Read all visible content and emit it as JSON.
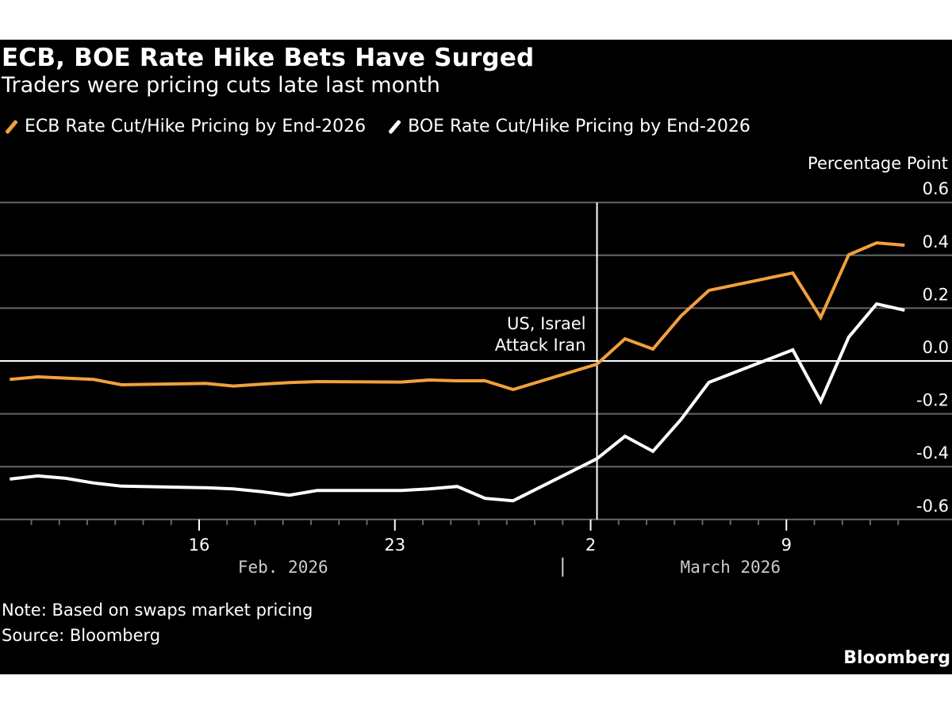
{
  "header": {
    "title": "ECB, BOE Rate Hike Bets Have Surged",
    "subtitle": "Traders were pricing cuts late last month"
  },
  "footer": {
    "note": "Note: Based on swaps market pricing",
    "source": "Source: Bloomberg",
    "brand": "Bloomberg"
  },
  "colors": {
    "background": "#000000",
    "ecb": "#f2a03d",
    "boe": "#ffffff",
    "grid": "#666666",
    "zero_line": "#ffffff",
    "text": "#ffffff",
    "month_label": "#cccccc"
  },
  "chart_data": {
    "type": "line",
    "title": "ECB, BOE Rate Hike Bets Have Surged",
    "subtitle": "Traders were pricing cuts late last month",
    "ylabel": "Percentage Point",
    "xlabel": "",
    "ylim": [
      -0.6,
      0.6
    ],
    "yticks": [
      0.6,
      0.4,
      0.2,
      0.0,
      -0.2,
      -0.4,
      -0.6
    ],
    "ytick_labels": [
      "0.6",
      "0.4",
      "0.2",
      "0.0",
      "-0.2",
      "-0.4",
      "-0.6"
    ],
    "y_axis_side": "right",
    "grid": true,
    "legend_position": "top-left",
    "x_domain": [
      "2026-02-09",
      "2026-03-14"
    ],
    "x_major_ticks": [
      {
        "date": "2026-02-16",
        "label": "16"
      },
      {
        "date": "2026-02-23",
        "label": "23"
      },
      {
        "date": "2026-03-02",
        "label": "2"
      },
      {
        "date": "2026-03-09",
        "label": "9"
      }
    ],
    "x_month_labels": [
      {
        "label": "Feb. 2026",
        "center_date": "2026-02-19"
      },
      {
        "label": "March 2026",
        "center_date": "2026-03-07"
      }
    ],
    "month_separator": "2026-03-01",
    "x": [
      "2026-02-09",
      "2026-02-10",
      "2026-02-11",
      "2026-02-12",
      "2026-02-13",
      "2026-02-16",
      "2026-02-17",
      "2026-02-18",
      "2026-02-19",
      "2026-02-20",
      "2026-02-23",
      "2026-02-24",
      "2026-02-25",
      "2026-02-26",
      "2026-02-27",
      "2026-03-02",
      "2026-03-03",
      "2026-03-04",
      "2026-03-05",
      "2026-03-06",
      "2026-03-09",
      "2026-03-10",
      "2026-03-11",
      "2026-03-12",
      "2026-03-13"
    ],
    "series": [
      {
        "name": "ECB Rate Cut/Hike Pricing by End-2026",
        "color": "#f2a03d",
        "values": [
          -0.07,
          -0.06,
          -0.065,
          -0.07,
          -0.09,
          -0.085,
          -0.095,
          -0.088,
          -0.082,
          -0.078,
          -0.08,
          -0.072,
          -0.075,
          -0.075,
          -0.108,
          -0.012,
          0.084,
          0.045,
          0.17,
          0.267,
          0.333,
          0.165,
          0.402,
          0.447,
          0.438
        ]
      },
      {
        "name": "BOE Rate Cut/Hike Pricing by End-2026",
        "color": "#ffffff",
        "values": [
          -0.447,
          -0.435,
          -0.444,
          -0.462,
          -0.474,
          -0.48,
          -0.484,
          -0.495,
          -0.508,
          -0.49,
          -0.49,
          -0.484,
          -0.475,
          -0.52,
          -0.529,
          -0.37,
          -0.285,
          -0.342,
          -0.222,
          -0.081,
          0.042,
          -0.153,
          0.09,
          0.216,
          0.192
        ]
      }
    ],
    "annotations": [
      {
        "text_lines": [
          "US, Israel",
          "Attack Iran"
        ],
        "date": "2026-03-02",
        "type": "vertical-line"
      }
    ]
  }
}
